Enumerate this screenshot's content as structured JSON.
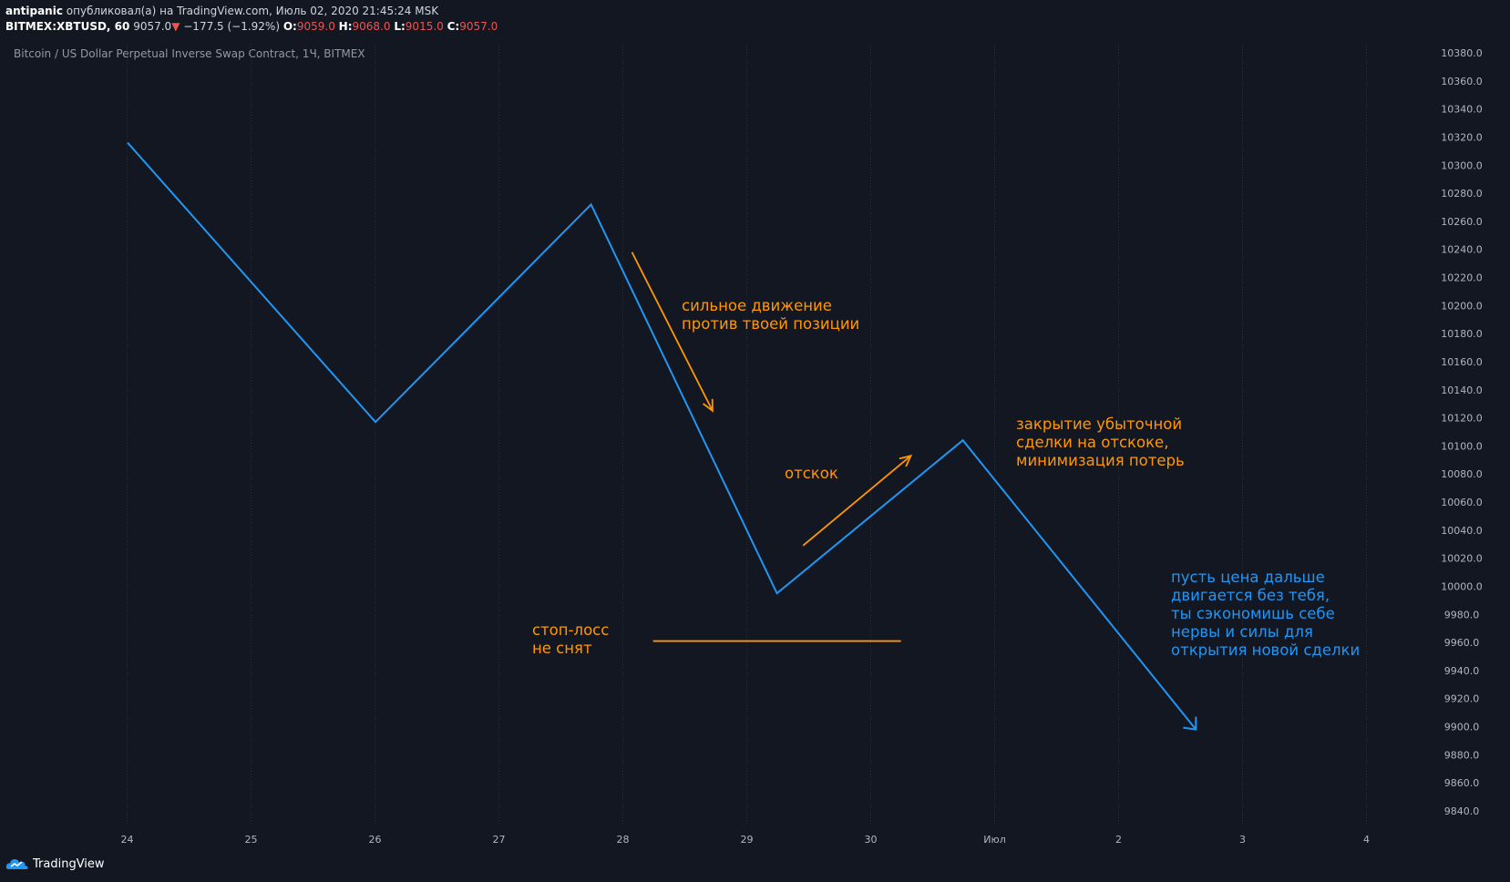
{
  "header": {
    "line1_user": "antipanic",
    "line1_rest": "опубликовал(а) на TradingView.com, Июль 02, 2020 21:45:24 MSK",
    "symbol": "BITMEX:XBTUSD, 60",
    "last_price": "9057.0",
    "change_arrow": "▼",
    "change": "−177.5 (−1.92%)",
    "open_label": "O:",
    "open_value": "9059.0",
    "high_label": "H:",
    "high_value": "9068.0",
    "low_label": "L:",
    "low_value": "9015.0",
    "close_label": "C:",
    "close_value": "9057.0"
  },
  "symbol_description": "Bitcoin / US Dollar Perpetual Inverse Swap Contract, 1Ч, BITMEX",
  "annotations": {
    "strong_move": [
      "сильное движение",
      "против твоей позиции"
    ],
    "bounce": [
      "отскок"
    ],
    "close_trade": [
      "закрытие убыточной",
      "сделки на отскоке,",
      "минимизация потерь"
    ],
    "stop_loss": [
      "стоп-лосс",
      "не снят"
    ],
    "let_price": [
      "пусть цена дальше",
      "двигается без тебя,",
      "ты сэкономишь себе",
      "нервы и силы для",
      "открытия новой сделки"
    ]
  },
  "footer": {
    "brand": "TradingView"
  },
  "colors": {
    "background": "#131722",
    "line": "#2196f3",
    "annotation_orange": "#ff9800",
    "annotation_blue": "#2196f3",
    "grid": "#2a2e39",
    "axis_text": "#b2b5be",
    "down": "#ef5350"
  },
  "chart_data": {
    "type": "line",
    "x_ticks": [
      "24",
      "25",
      "26",
      "27",
      "28",
      "29",
      "30",
      "Июл",
      "2",
      "3",
      "4"
    ],
    "y_ticks": [
      "10380.0",
      "10360.0",
      "10340.0",
      "10320.0",
      "10300.0",
      "10280.0",
      "10260.0",
      "10240.0",
      "10220.0",
      "10200.0",
      "10180.0",
      "10160.0",
      "10140.0",
      "10120.0",
      "10100.0",
      "10080.0",
      "10060.0",
      "10040.0",
      "10020.0",
      "10000.0",
      "9980.0",
      "9960.0",
      "9940.0",
      "9920.0",
      "9900.0",
      "9880.0",
      "9860.0",
      "9840.0"
    ],
    "ylim": [
      9830,
      10390
    ],
    "xlim": [
      23.0,
      34.5
    ],
    "series": [
      {
        "x": [
          23.93,
          25.93,
          27.67,
          29.17,
          30.67,
          32.55
        ],
        "y": [
          10316,
          10117,
          10272,
          9995,
          10104,
          9898
        ]
      }
    ],
    "annotation_lines": [
      {
        "kind": "arrow",
        "color": "orange",
        "x": [
          28.0,
          28.65
        ],
        "y": [
          10238,
          10125
        ]
      },
      {
        "kind": "arrow",
        "color": "orange",
        "x": [
          29.38,
          30.25
        ],
        "y": [
          10029,
          10093
        ]
      },
      {
        "kind": "line",
        "color": "orange",
        "x": [
          28.17,
          30.17
        ],
        "y": [
          9961,
          9961
        ]
      }
    ],
    "grid": true
  }
}
